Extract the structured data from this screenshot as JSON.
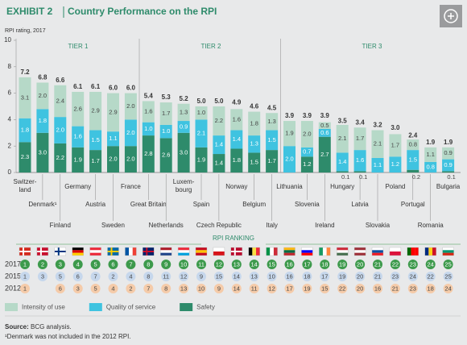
{
  "chart_data": {
    "type": "bar",
    "stacked": true,
    "exhibit": "EXHIBIT 2",
    "title": "Country Performance on the RPI",
    "y_label": "RPI rating, 2017",
    "tiers": [
      "TIER 1",
      "TIER 2",
      "TIER 3"
    ],
    "categories": [
      "Switzer-land",
      "Denmark¹",
      "Finland",
      "Germany",
      "Austria",
      "Sweden",
      "France",
      "Great Britain",
      "Netherlands",
      "Luxem-bourg",
      "Spain",
      "Czech Republic",
      "Norway",
      "Belgium",
      "Italy",
      "Lithuania",
      "Slovenia",
      "Ireland",
      "Hungary",
      "Latvia",
      "Slovakia",
      "Poland",
      "Portugal",
      "Romania",
      "Bulgaria"
    ],
    "series": [
      {
        "name": "Intensity of use",
        "color": "#b6d9c8",
        "values": [
          3.1,
          2.0,
          2.4,
          2.6,
          2.9,
          2.9,
          2.0,
          1.6,
          1.7,
          1.3,
          1.0,
          2.2,
          1.6,
          1.8,
          1.3,
          1.9,
          2.0,
          0.5,
          2.1,
          1.7,
          2.1,
          1.7,
          0.8,
          1.1,
          0.9
        ],
        "value_labels": [
          "3.1",
          "2.0",
          "2.4",
          "2.6",
          "2.9",
          "2.9",
          "2.0",
          "1.6",
          "1.7",
          "1.3",
          "1.0",
          "2.2",
          "1.6",
          "1.8",
          "1.3",
          "1.9",
          "2.0",
          "0.5",
          "2.1",
          "1.7",
          "2.1",
          "1.7",
          "0.8",
          "1.1",
          "0.9"
        ]
      },
      {
        "name": "Quality of service",
        "color": "#3fc3e0",
        "values": [
          1.8,
          1.8,
          2.0,
          1.6,
          1.5,
          1.1,
          2.0,
          1.0,
          1.0,
          0.9,
          2.1,
          1.4,
          1.4,
          1.3,
          1.5,
          2.0,
          0.7,
          0.6,
          1.4,
          1.6,
          1.1,
          1.2,
          1.5,
          0.8,
          0.9
        ],
        "value_labels": [
          "1.8",
          "1.8",
          "2.0",
          "1.6",
          "1.5",
          "1.1",
          "2.0",
          "1.0",
          "1.0",
          "0.9",
          "2.1",
          "1.4",
          "1.4",
          "1.3",
          "1.5",
          "2.0",
          "0.7",
          "0.6",
          "1.4",
          "1.6",
          "1.1",
          "1.2",
          "1.5",
          "0.8",
          "0.9"
        ]
      },
      {
        "name": "Safety",
        "color": "#2e8b6b",
        "values": [
          2.3,
          3.0,
          2.2,
          1.9,
          1.7,
          2.0,
          2.0,
          2.8,
          2.6,
          3.0,
          1.9,
          1.4,
          1.8,
          1.5,
          1.7,
          0,
          1.2,
          2.7,
          0.1,
          0.1,
          0,
          0,
          0.2,
          0,
          0.1
        ],
        "value_labels": [
          "2.3",
          "3.0",
          "2.2",
          "1.9",
          "1.7",
          "2.0",
          "2.0",
          "2.8",
          "2.6",
          "3.0",
          "1.9",
          "1.4",
          "1.8",
          "1.5",
          "1.7",
          null,
          "1.2",
          "2.7",
          "0.1",
          "0.1",
          null,
          null,
          "0.2",
          null,
          "0.1"
        ]
      }
    ],
    "totals": [
      7.2,
      6.8,
      6.6,
      6.1,
      6.1,
      6.0,
      6.0,
      5.4,
      5.3,
      5.2,
      5.0,
      5.0,
      4.9,
      4.6,
      4.5,
      3.9,
      3.9,
      3.9,
      3.5,
      3.4,
      3.2,
      3.0,
      2.4,
      1.9,
      1.9
    ],
    "total_labels": [
      "7.2",
      "6.8",
      "6.6",
      "6.1",
      "6.1",
      "6.0",
      "6.0",
      "5.4",
      "5.3",
      "5.2",
      "5.0",
      "5.0",
      "4.9",
      "4.6",
      "4.5",
      "3.9",
      "3.9",
      "3.9",
      "3.5",
      "3.4",
      "3.2",
      "3.0",
      "2.4",
      "1.9",
      "1.9"
    ],
    "ylim": [
      0,
      10
    ],
    "yticks": [
      0,
      2,
      4,
      6,
      8,
      10
    ],
    "grid": false,
    "ranking": {
      "title": "RPI RANKING",
      "rows": [
        {
          "year": 2017,
          "color": "#3d9a4c",
          "ranks": [
            1,
            2,
            3,
            4,
            5,
            6,
            7,
            8,
            9,
            10,
            11,
            12,
            13,
            14,
            15,
            16,
            17,
            18,
            19,
            20,
            21,
            22,
            23,
            24,
            25
          ]
        },
        {
          "year": 2015,
          "color": "#c6d7ec",
          "ranks": [
            1,
            3,
            5,
            6,
            7,
            2,
            4,
            8,
            11,
            12,
            9,
            15,
            14,
            13,
            10,
            16,
            18,
            17,
            19,
            20,
            21,
            23,
            24,
            22,
            25
          ]
        },
        {
          "year": 2012,
          "color": "#f5cba9",
          "ranks": [
            1,
            null,
            6,
            3,
            5,
            4,
            2,
            7,
            8,
            13,
            10,
            9,
            14,
            11,
            12,
            17,
            19,
            15,
            22,
            20,
            16,
            21,
            23,
            18,
            24
          ]
        }
      ]
    },
    "source_label": "Source:",
    "source": "BCG analysis.",
    "footnote": "¹Denmark was not included in the 2012 RPI."
  }
}
